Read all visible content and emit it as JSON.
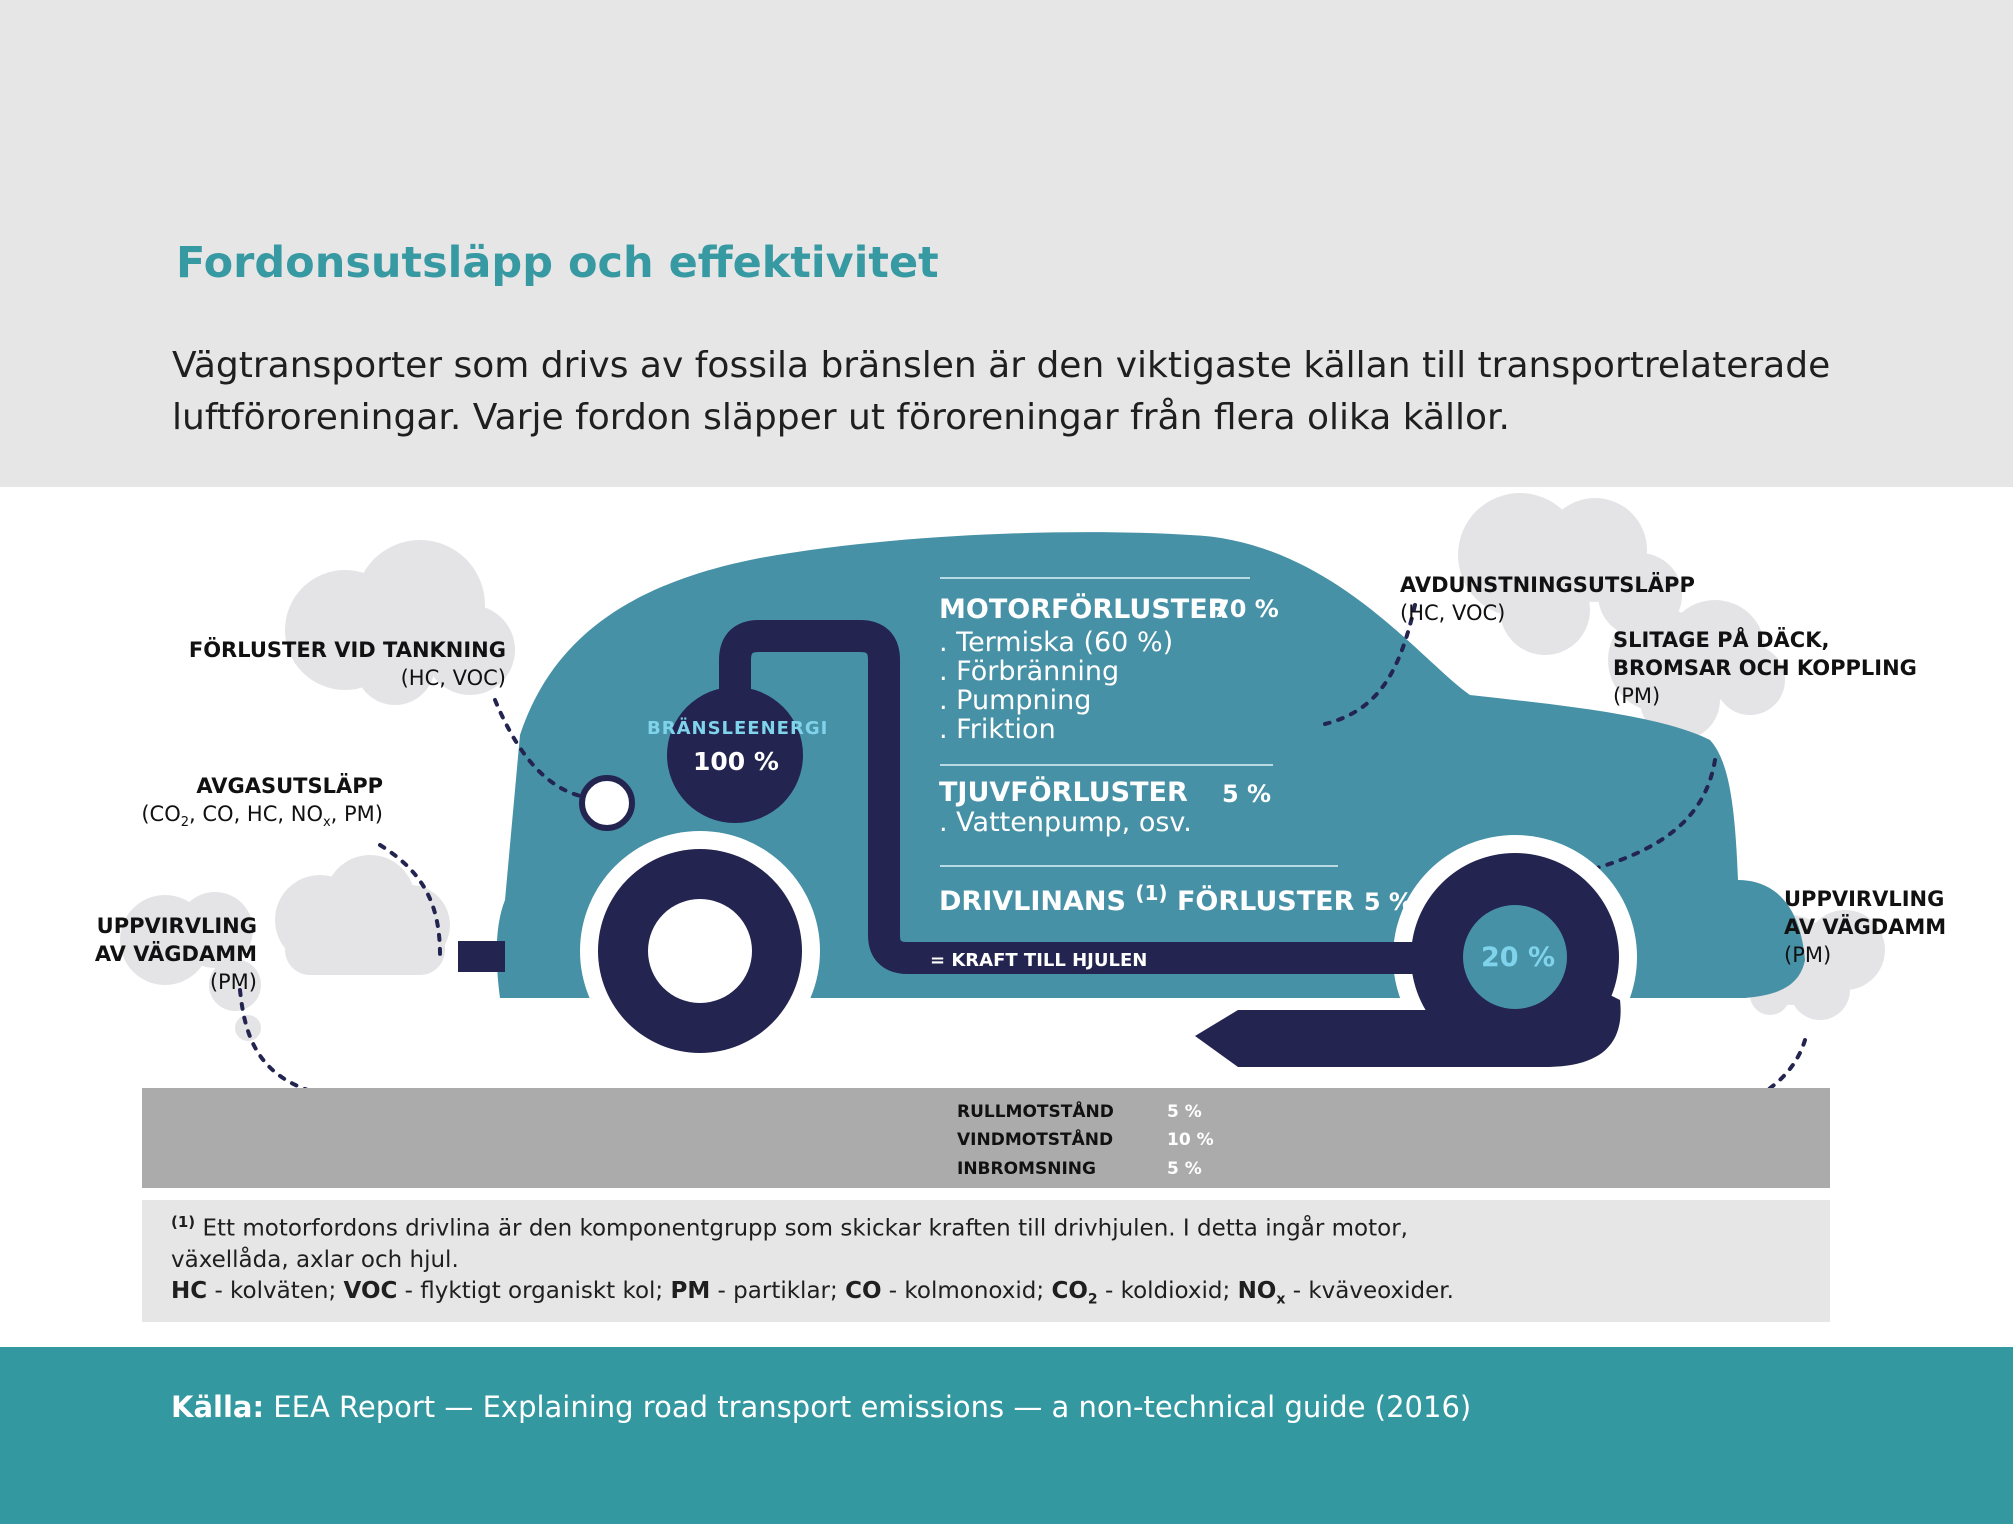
{
  "title": "Fordonsutsläpp och effektivitet",
  "intro": "Vägtransporter som drivs av fossila bränslen är den viktigaste källan till transportrelaterade luftföroreningar. Varje fordon släpper ut föroreningar från flera olika källor.",
  "colors": {
    "header_bg": "#e6e6e7",
    "title": "#3799a2",
    "car": "#4791a7",
    "dark_blue": "#23244f",
    "light_blue_text": "#7fd3ea",
    "road": "#ababac",
    "cloud": "#e4e4e6",
    "footer": "#3498a1"
  },
  "labels": {
    "tanking": {
      "title": "FÖRLUSTER VID TANKNING",
      "sub": "(HC, VOC)"
    },
    "exhaust": {
      "title": "AVGASUTSLÄPP",
      "sub_pre": "(CO",
      "sub_2": "2",
      "sub_mid": ", CO, HC, NO",
      "sub_x": "x",
      "sub_post": ", PM)"
    },
    "dust_left": {
      "line1": "UPPVIRVLING",
      "line2": "AV VÄGDAMM",
      "sub": "(PM)"
    },
    "evaporation": {
      "title": "AVDUNSTNINGSUTSLÄPP",
      "sub": "(HC, VOC)"
    },
    "wear": {
      "line1": "SLITAGE PÅ DÄCK,",
      "line2": "BROMSAR OCH KOPPLING",
      "sub": "(PM)"
    },
    "dust_right": {
      "line1": "UPPVIRVLING",
      "line2": "AV VÄGDAMM",
      "sub": "(PM)"
    }
  },
  "car": {
    "fuel_label": "BRÄNSLEENERGI",
    "fuel_pct": "100 %",
    "engine_title": "MOTORFÖRLUSTER",
    "engine_pct": "70 %",
    "engine_items": [
      ". Termiska (60 %)",
      ". Förbränning",
      ". Pumpning",
      ". Friktion"
    ],
    "parasitic_title": "TJUVFÖRLUSTER",
    "parasitic_pct": "5 %",
    "parasitic_items": [
      ". Vattenpump, osv."
    ],
    "drivetrain_title": "DRIVLINANS",
    "drivetrain_sup": "(1)",
    "drivetrain_title2": "FÖRLUSTER",
    "drivetrain_pct": "5 %",
    "wheels_label": "= KRAFT TILL HJULEN",
    "wheels_pct": "20 %"
  },
  "road": {
    "rows": [
      {
        "label": "RULLMOTSTÅND",
        "value": "5 %"
      },
      {
        "label": "VINDMOTSTÅND",
        "value": "10 %"
      },
      {
        "label": "INBROMSNING",
        "value": "5 %"
      }
    ]
  },
  "footnote": {
    "marker": "(1)",
    "text": "Ett motorfordons drivlina är den komponentgrupp som skickar kraften till drivhjulen. I detta ingår motor, växellåda, axlar och hjul.",
    "hc": "HC",
    "hc_def": " - kolväten; ",
    "voc": "VOC",
    "voc_def": " - flyktigt organiskt kol; ",
    "pm": "PM",
    "pm_def": " - partiklar; ",
    "co": "CO",
    "co_def": " - kolmonoxid;  ",
    "co2": "CO",
    "co2_sub": "2",
    "co2_def": " - koldioxid;  ",
    "nox": "NO",
    "nox_sub": "x",
    "nox_def": " - kväveoxider."
  },
  "source": {
    "label": "Källa:",
    "text": " EEA Report — Explaining road transport emissions — a non-technical guide (2016)"
  }
}
